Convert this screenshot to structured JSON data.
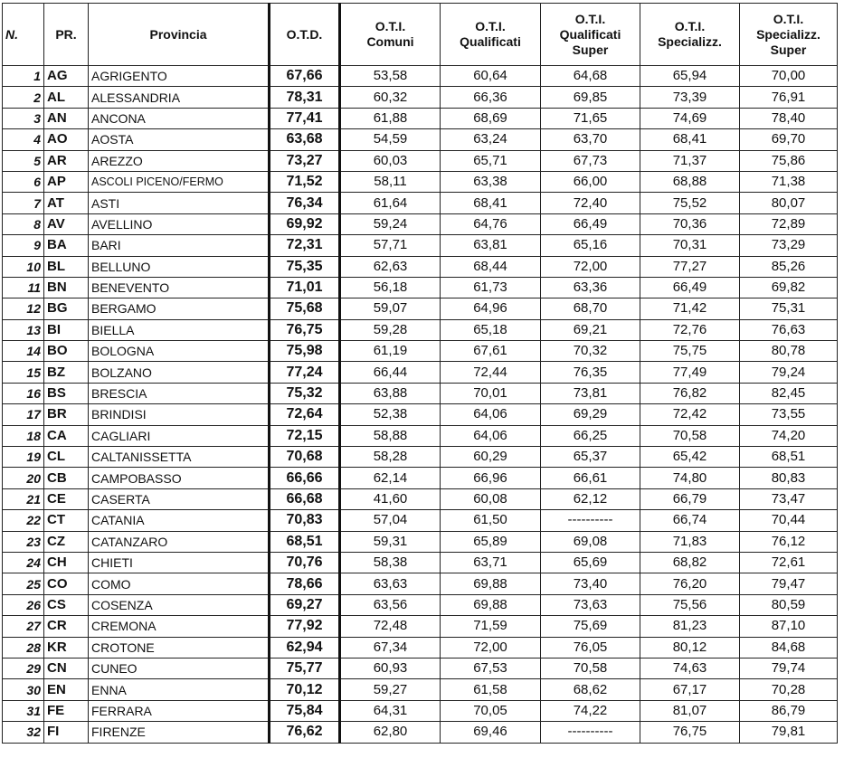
{
  "headers": [
    "N.",
    "PR.",
    "Provincia",
    "O.T.D.",
    "O.T.I.\nComuni",
    "O.T.I.\nQualificati",
    "O.T.I.\nQualificati\nSuper",
    "O.T.I.\nSpecializz.",
    "O.T.I.\nSpecializz.\nSuper"
  ],
  "rows": [
    [
      "1",
      "AG",
      "AGRIGENTO",
      "67,66",
      "53,58",
      "60,64",
      "64,68",
      "65,94",
      "70,00"
    ],
    [
      "2",
      "AL",
      "ALESSANDRIA",
      "78,31",
      "60,32",
      "66,36",
      "69,85",
      "73,39",
      "76,91"
    ],
    [
      "3",
      "AN",
      "ANCONA",
      "77,41",
      "61,88",
      "68,69",
      "71,65",
      "74,69",
      "78,40"
    ],
    [
      "4",
      "AO",
      "AOSTA",
      "63,68",
      "54,59",
      "63,24",
      "63,70",
      "68,41",
      "69,70"
    ],
    [
      "5",
      "AR",
      "AREZZO",
      "73,27",
      "60,03",
      "65,71",
      "67,73",
      "71,37",
      "75,86"
    ],
    [
      "6",
      "AP",
      "ASCOLI PICENO/FERMO",
      "71,52",
      "58,11",
      "63,38",
      "66,00",
      "68,88",
      "71,38"
    ],
    [
      "7",
      "AT",
      "ASTI",
      "76,34",
      "61,64",
      "68,41",
      "72,40",
      "75,52",
      "80,07"
    ],
    [
      "8",
      "AV",
      "AVELLINO",
      "69,92",
      "59,24",
      "64,76",
      "66,49",
      "70,36",
      "72,89"
    ],
    [
      "9",
      "BA",
      "BARI",
      "72,31",
      "57,71",
      "63,81",
      "65,16",
      "70,31",
      "73,29"
    ],
    [
      "10",
      "BL",
      "BELLUNO",
      "75,35",
      "62,63",
      "68,44",
      "72,00",
      "77,27",
      "85,26"
    ],
    [
      "11",
      "BN",
      "BENEVENTO",
      "71,01",
      "56,18",
      "61,73",
      "63,36",
      "66,49",
      "69,82"
    ],
    [
      "12",
      "BG",
      "BERGAMO",
      "75,68",
      "59,07",
      "64,96",
      "68,70",
      "71,42",
      "75,31"
    ],
    [
      "13",
      "BI",
      "BIELLA",
      "76,75",
      "59,28",
      "65,18",
      "69,21",
      "72,76",
      "76,63"
    ],
    [
      "14",
      "BO",
      "BOLOGNA",
      "75,98",
      "61,19",
      "67,61",
      "70,32",
      "75,75",
      "80,78"
    ],
    [
      "15",
      "BZ",
      "BOLZANO",
      "77,24",
      "66,44",
      "72,44",
      "76,35",
      "77,49",
      "79,24"
    ],
    [
      "16",
      "BS",
      "BRESCIA",
      "75,32",
      "63,88",
      "70,01",
      "73,81",
      "76,82",
      "82,45"
    ],
    [
      "17",
      "BR",
      "BRINDISI",
      "72,64",
      "52,38",
      "64,06",
      "69,29",
      "72,42",
      "73,55"
    ],
    [
      "18",
      "CA",
      "CAGLIARI",
      "72,15",
      "58,88",
      "64,06",
      "66,25",
      "70,58",
      "74,20"
    ],
    [
      "19",
      "CL",
      "CALTANISSETTA",
      "70,68",
      "58,28",
      "60,29",
      "65,37",
      "65,42",
      "68,51"
    ],
    [
      "20",
      "CB",
      "CAMPOBASSO",
      "66,66",
      "62,14",
      "66,96",
      "66,61",
      "74,80",
      "80,83"
    ],
    [
      "21",
      "CE",
      "CASERTA",
      "66,68",
      "41,60",
      "60,08",
      "62,12",
      "66,79",
      "73,47"
    ],
    [
      "22",
      "CT",
      "CATANIA",
      "70,83",
      "57,04",
      "61,50",
      "----------",
      "66,74",
      "70,44"
    ],
    [
      "23",
      "CZ",
      "CATANZARO",
      "68,51",
      "59,31",
      "65,89",
      "69,08",
      "71,83",
      "76,12"
    ],
    [
      "24",
      "CH",
      "CHIETI",
      "70,76",
      "58,38",
      "63,71",
      "65,69",
      "68,82",
      "72,61"
    ],
    [
      "25",
      "CO",
      "COMO",
      "78,66",
      "63,63",
      "69,88",
      "73,40",
      "76,20",
      "79,47"
    ],
    [
      "26",
      "CS",
      "COSENZA",
      "69,27",
      "63,56",
      "69,88",
      "73,63",
      "75,56",
      "80,59"
    ],
    [
      "27",
      "CR",
      "CREMONA",
      "77,92",
      "72,48",
      "71,59",
      "75,69",
      "81,23",
      "87,10"
    ],
    [
      "28",
      "KR",
      "CROTONE",
      "62,94",
      "67,34",
      "72,00",
      "76,05",
      "80,12",
      "84,68"
    ],
    [
      "29",
      "CN",
      "CUNEO",
      "75,77",
      "60,93",
      "67,53",
      "70,58",
      "74,63",
      "79,74"
    ],
    [
      "30",
      "EN",
      "ENNA",
      "70,12",
      "59,27",
      "61,58",
      "68,62",
      "67,17",
      "70,28"
    ],
    [
      "31",
      "FE",
      "FERRARA",
      "75,84",
      "64,31",
      "70,05",
      "74,22",
      "81,07",
      "86,79"
    ],
    [
      "32",
      "FI",
      "FIRENZE",
      "76,62",
      "62,80",
      "69,46",
      "----------",
      "76,75",
      "79,81"
    ]
  ]
}
